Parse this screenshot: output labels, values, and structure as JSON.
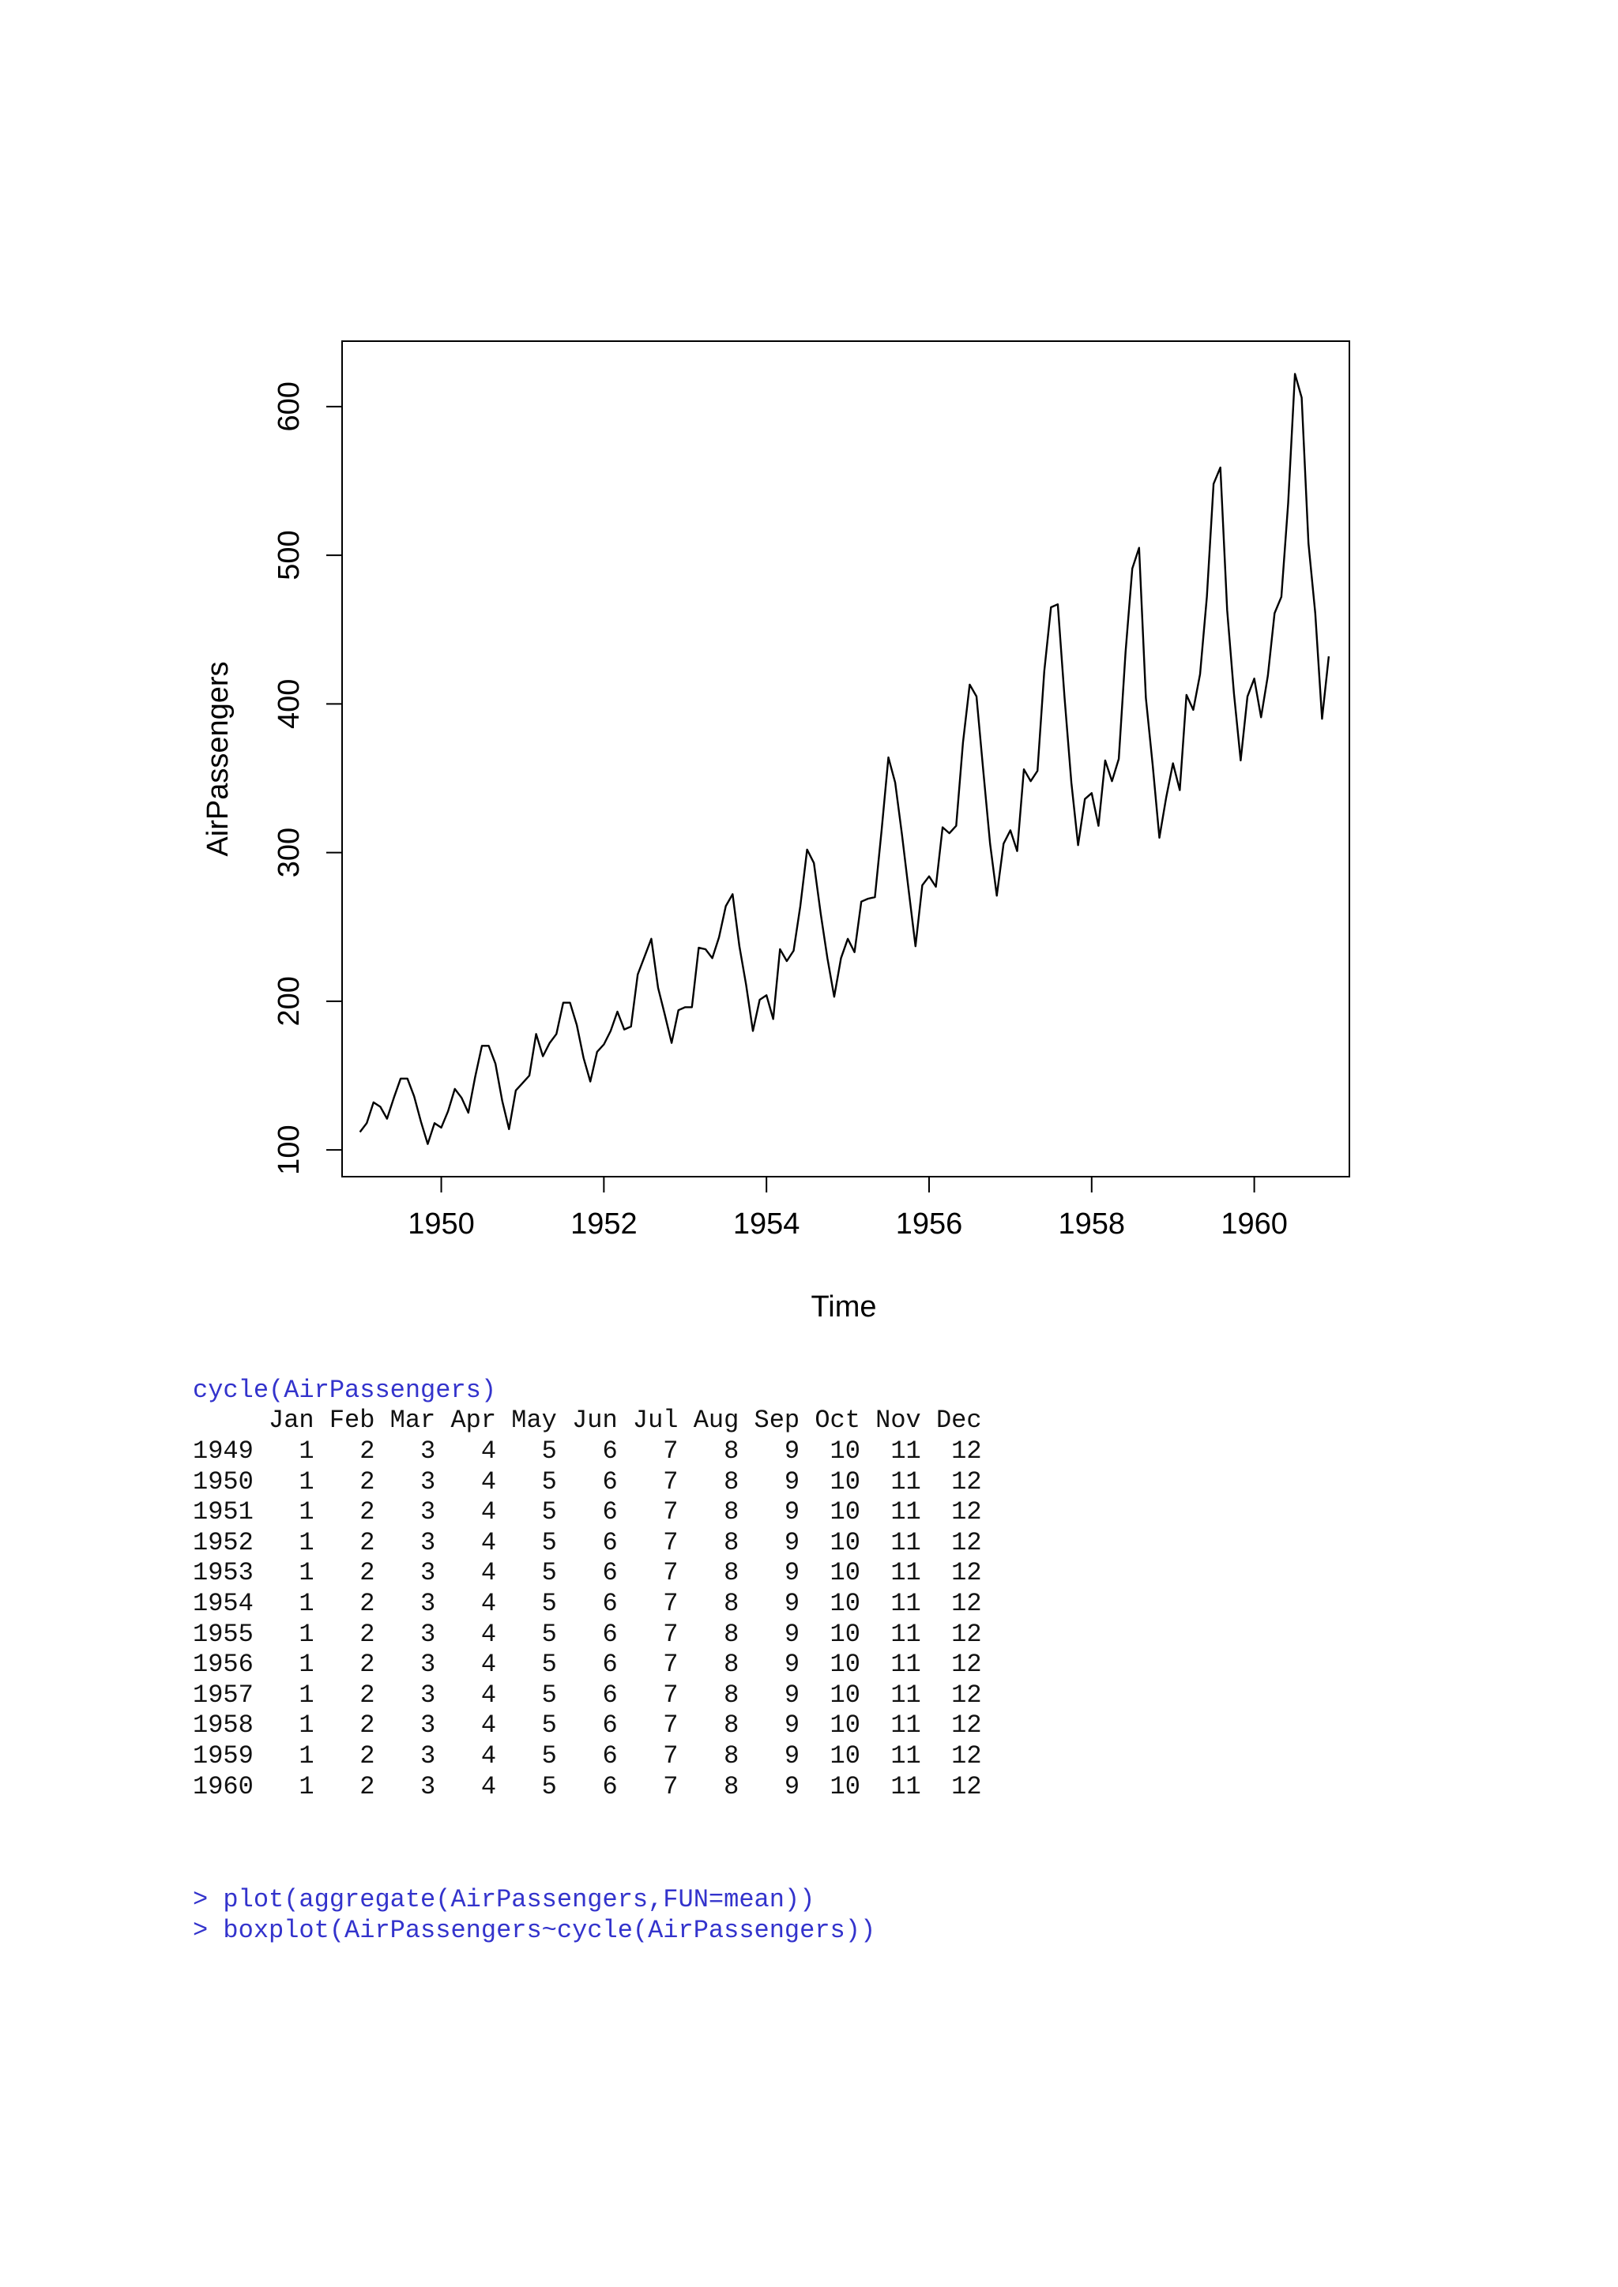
{
  "chart_data": {
    "type": "line",
    "xlabel": "Time",
    "ylabel": "AirPassengers",
    "xlim": [
      1948.78,
      1961.17
    ],
    "ylim": [
      82,
      644
    ],
    "x_ticks": [
      "1950",
      "1952",
      "1954",
      "1956",
      "1958",
      "1960"
    ],
    "y_ticks": [
      "100",
      "200",
      "300",
      "400",
      "500",
      "600"
    ],
    "x_start": 1949.0,
    "frequency": 12,
    "values": [
      112,
      118,
      132,
      129,
      121,
      135,
      148,
      148,
      136,
      119,
      104,
      118,
      115,
      126,
      141,
      135,
      125,
      149,
      170,
      170,
      158,
      133,
      114,
      140,
      145,
      150,
      178,
      163,
      172,
      178,
      199,
      199,
      184,
      162,
      146,
      166,
      171,
      180,
      193,
      181,
      183,
      218,
      230,
      242,
      209,
      191,
      172,
      194,
      196,
      196,
      236,
      235,
      229,
      243,
      264,
      272,
      237,
      211,
      180,
      201,
      204,
      188,
      235,
      227,
      234,
      264,
      302,
      293,
      259,
      229,
      203,
      229,
      242,
      233,
      267,
      269,
      270,
      315,
      364,
      347,
      312,
      274,
      237,
      278,
      284,
      277,
      317,
      313,
      318,
      374,
      413,
      405,
      355,
      306,
      271,
      306,
      315,
      301,
      356,
      348,
      355,
      422,
      465,
      467,
      404,
      347,
      305,
      336,
      340,
      318,
      362,
      348,
      363,
      435,
      491,
      505,
      404,
      359,
      310,
      337,
      360,
      342,
      406,
      396,
      420,
      472,
      548,
      559,
      463,
      407,
      362,
      405,
      417,
      391,
      419,
      461,
      472,
      535,
      622,
      606,
      508,
      461,
      390,
      432
    ],
    "line_color": "#000000"
  },
  "console": {
    "cycle_command": "cycle(AirPassengers)",
    "header": "     Jan Feb Mar Apr May Jun Jul Aug Sep Oct Nov Dec",
    "rows": [
      "1949   1   2   3   4   5   6   7   8   9  10  11  12",
      "1950   1   2   3   4   5   6   7   8   9  10  11  12",
      "1951   1   2   3   4   5   6   7   8   9  10  11  12",
      "1952   1   2   3   4   5   6   7   8   9  10  11  12",
      "1953   1   2   3   4   5   6   7   8   9  10  11  12",
      "1954   1   2   3   4   5   6   7   8   9  10  11  12",
      "1955   1   2   3   4   5   6   7   8   9  10  11  12",
      "1956   1   2   3   4   5   6   7   8   9  10  11  12",
      "1957   1   2   3   4   5   6   7   8   9  10  11  12",
      "1958   1   2   3   4   5   6   7   8   9  10  11  12",
      "1959   1   2   3   4   5   6   7   8   9  10  11  12",
      "1960   1   2   3   4   5   6   7   8   9  10  11  12"
    ],
    "commands": [
      "> plot(aggregate(AirPassengers,FUN=mean))",
      "> boxplot(AirPassengers~cycle(AirPassengers))"
    ]
  },
  "colors": {
    "command_text": "#3333cc",
    "output_text": "#111111"
  }
}
